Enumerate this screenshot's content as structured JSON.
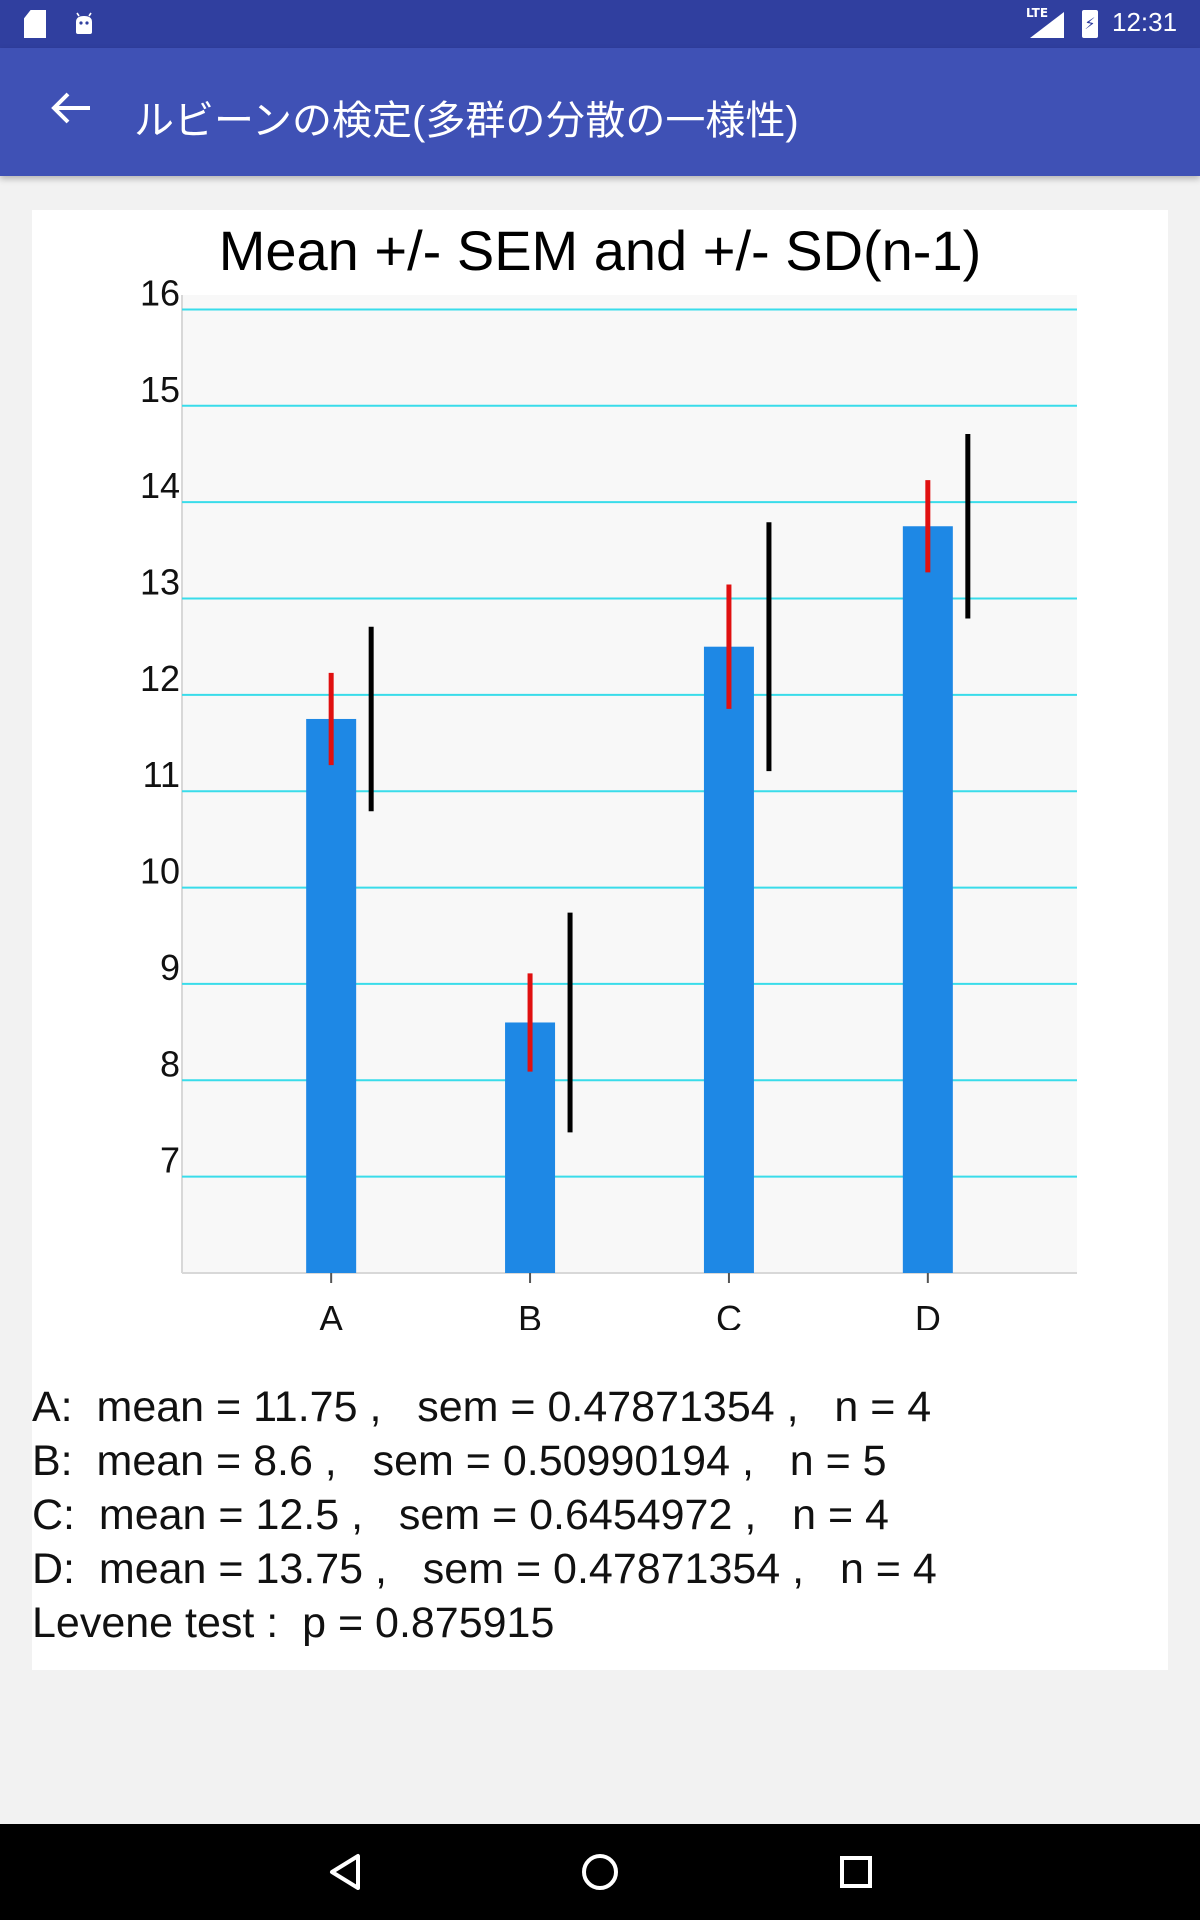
{
  "status_bar": {
    "time": "12:31",
    "network": "LTE",
    "icons": [
      "sd-card-icon",
      "android-debug-icon",
      "signal-icon",
      "battery-charging-icon"
    ]
  },
  "app_bar": {
    "title": "ルビーンの検定(多群の分散の一様性)",
    "back_icon": "arrow-back-icon"
  },
  "chart_data": {
    "type": "bar",
    "title": "Mean +/- SEM and +/- SD(n-1)",
    "categories": [
      "A",
      "B",
      "C",
      "D"
    ],
    "values": [
      11.75,
      8.6,
      12.5,
      13.75
    ],
    "sem": [
      0.47871354,
      0.50990194,
      0.6454972,
      0.47871354
    ],
    "sd": [
      0.9574271,
      1.140175,
      1.2909944,
      0.9574271
    ],
    "yticks": [
      7,
      8,
      9,
      10,
      11,
      12,
      13,
      14,
      15,
      16
    ],
    "ylim": [
      6,
      16.15
    ],
    "xlabel": "",
    "ylabel": "",
    "grid": true,
    "colors": {
      "bar": "#1e88e5",
      "sem": "#e01010",
      "sd": "#000000",
      "grid": "#39dcea",
      "plot_bg": "#f8f8f8"
    }
  },
  "stats": [
    "A:  mean = 11.75 ,   sem = 0.47871354 ,   n = 4",
    "B:  mean = 8.6 ,   sem = 0.50990194 ,   n = 5",
    "C:  mean = 12.5 ,   sem = 0.6454972 ,   n = 4",
    "D:  mean = 13.75 ,   sem = 0.47871354 ,   n = 4",
    "Levene test :  p = 0.875915"
  ],
  "nav_bar": {
    "icons": [
      "back-triangle-icon",
      "home-circle-icon",
      "recents-square-icon"
    ]
  }
}
